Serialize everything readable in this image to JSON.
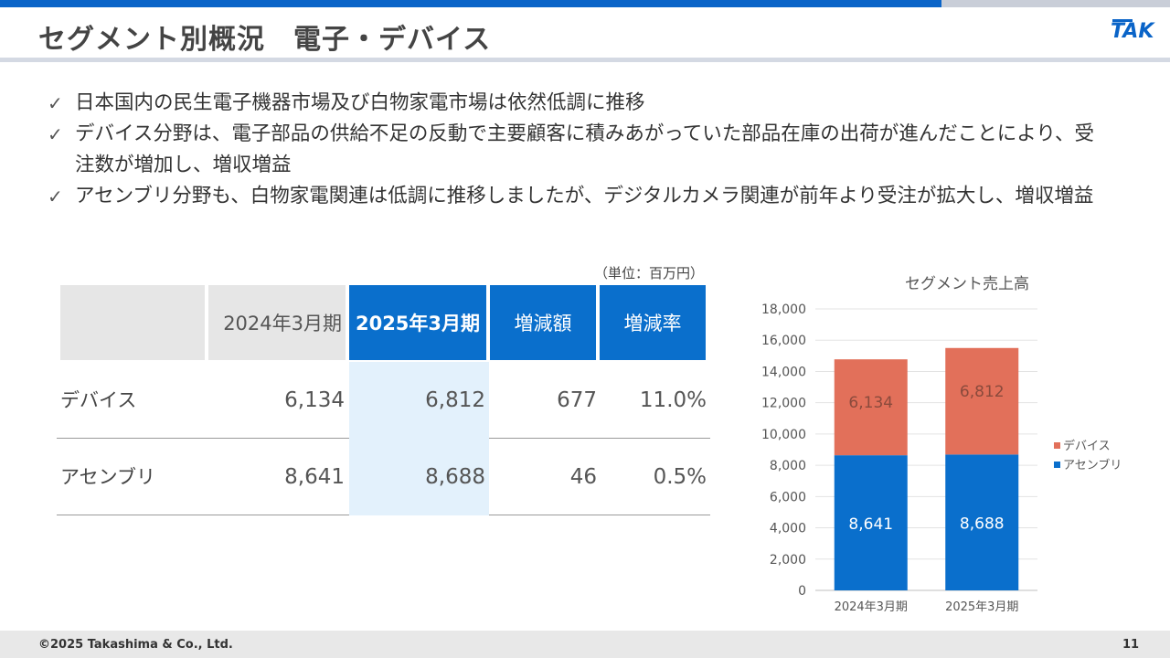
{
  "header": {
    "title": "セグメント別概況　電子・デバイス",
    "logo_text": "TAK",
    "accent": "#0a64c8"
  },
  "bullets": [
    "日本国内の民生電子機器市場及び白物家電市場は依然低調に推移",
    "デバイス分野は、電子部品の供給不足の反動で主要顧客に積みあがっていた部品在庫の出荷が進んだことにより、受注数が増加し、増収増益",
    "アセンブリ分野も、白物家電関連は低調に推移しましたが、デジタルカメラ関連が前年より受注が拡大し、増収増益"
  ],
  "check_icon": "✓",
  "table": {
    "unit": "（単位：百万円）",
    "headers": [
      "",
      "2024年3月期",
      "2025年3月期",
      "増減額",
      "増減率"
    ],
    "rows": [
      {
        "label": "デバイス",
        "v2024": "6,134",
        "v2025": "6,812",
        "diff": "677",
        "rate": "11.0%"
      },
      {
        "label": "アセンブリ",
        "v2024": "8,641",
        "v2025": "8,688",
        "diff": "46",
        "rate": "0.5%"
      }
    ]
  },
  "chart_data": {
    "type": "bar",
    "stacked": true,
    "title": "セグメント売上高",
    "categories": [
      "2024年3月期",
      "2025年3月期"
    ],
    "series": [
      {
        "name": "アセンブリ",
        "values": [
          8641,
          8688
        ],
        "labels": [
          "8,641",
          "8,688"
        ],
        "color": "#0a6fcc"
      },
      {
        "name": "デバイス",
        "values": [
          6134,
          6812
        ],
        "labels": [
          "6,134",
          "6,812"
        ],
        "color": "#e2705a"
      }
    ],
    "ylim": [
      0,
      18000
    ],
    "yticks": [
      "0",
      "2,000",
      "4,000",
      "6,000",
      "8,000",
      "10,000",
      "12,000",
      "14,000",
      "16,000",
      "18,000"
    ],
    "grid": true,
    "legend": "right",
    "legend_entries": [
      "デバイス",
      "アセンブリ"
    ]
  },
  "footer": {
    "copyright": "©2025 Takashima & Co., Ltd.",
    "page": "11"
  }
}
